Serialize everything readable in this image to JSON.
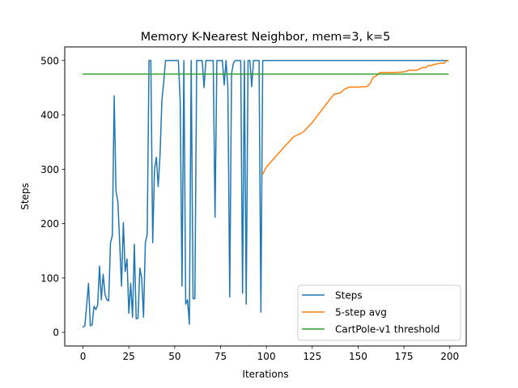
{
  "chart_data": {
    "type": "line",
    "title": "Memory K-Nearest Neighbor, mem=3, k=5",
    "xlabel": "Iterations",
    "ylabel": "Steps",
    "xlim": [
      -9.95,
      208.95
    ],
    "ylim": [
      -25,
      525
    ],
    "xticks": [
      0,
      25,
      50,
      75,
      100,
      125,
      150,
      175,
      200
    ],
    "yticks": [
      0,
      100,
      200,
      300,
      400,
      500
    ],
    "grid": false,
    "legend_position": "lower-right",
    "series": [
      {
        "name": "Steps",
        "color": "#1f77b4",
        "x": [
          0,
          1,
          2,
          3,
          4,
          5,
          6,
          7,
          8,
          9,
          10,
          11,
          12,
          13,
          14,
          15,
          16,
          17,
          18,
          19,
          20,
          21,
          22,
          23,
          24,
          25,
          26,
          27,
          28,
          29,
          30,
          31,
          32,
          33,
          34,
          35,
          36,
          37,
          38,
          39,
          40,
          41,
          42,
          43,
          44,
          45,
          46,
          47,
          48,
          49,
          50,
          51,
          52,
          53,
          54,
          55,
          56,
          57,
          58,
          59,
          60,
          61,
          62,
          63,
          64,
          65,
          66,
          67,
          68,
          69,
          70,
          71,
          72,
          73,
          74,
          75,
          76,
          77,
          78,
          79,
          80,
          81,
          82,
          83,
          84,
          85,
          86,
          87,
          88,
          89,
          90,
          91,
          92,
          93,
          94,
          95,
          96,
          97,
          98,
          99,
          100,
          199
        ],
        "y": [
          10,
          12,
          50,
          90,
          12,
          14,
          48,
          42,
          50,
          122,
          60,
          107,
          70,
          60,
          58,
          165,
          178,
          435,
          260,
          240,
          165,
          85,
          202,
          112,
          135,
          35,
          90,
          28,
          162,
          25,
          26,
          118,
          100,
          28,
          165,
          180,
          500,
          500,
          165,
          300,
          322,
          268,
          325,
          425,
          460,
          500,
          500,
          500,
          500,
          500,
          500,
          500,
          500,
          425,
          85,
          500,
          52,
          60,
          15,
          500,
          62,
          62,
          500,
          500,
          500,
          500,
          450,
          500,
          500,
          500,
          500,
          500,
          212,
          500,
          500,
          500,
          500,
          455,
          500,
          450,
          65,
          475,
          495,
          500,
          500,
          500,
          500,
          72,
          500,
          52,
          500,
          500,
          452,
          500,
          500,
          500,
          500,
          37,
          500,
          500,
          500,
          500
        ]
      },
      {
        "name": "5-step avg",
        "color": "#ff7f0e",
        "x": [
          98,
          100,
          105,
          110,
          115,
          120,
          125,
          130,
          135,
          137,
          140,
          143,
          145,
          150,
          155,
          157,
          158,
          160,
          162,
          165,
          170,
          175,
          177,
          178,
          180,
          182,
          185,
          187,
          188,
          190,
          193,
          195,
          197,
          198,
          199
        ],
        "y": [
          291,
          304,
          323,
          342,
          360,
          368,
          386,
          408,
          430,
          438,
          440,
          448,
          451,
          451,
          452,
          460,
          468,
          472,
          478,
          478,
          478,
          479,
          481,
          482,
          482,
          482,
          487,
          487,
          490,
          491,
          494,
          495,
          495,
          499,
          500
        ]
      },
      {
        "name": "CartPole-v1 threshold",
        "color": "#2ca02c",
        "x": [
          0,
          199
        ],
        "y": [
          475,
          475
        ]
      }
    ]
  }
}
